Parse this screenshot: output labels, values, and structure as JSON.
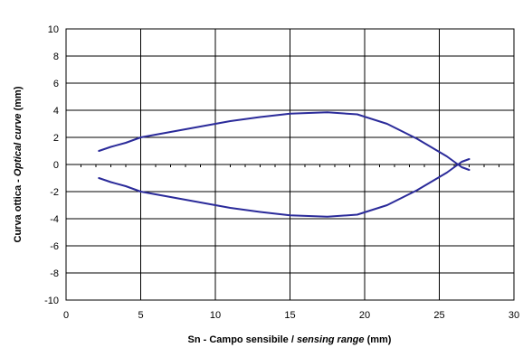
{
  "chart_data": {
    "type": "line",
    "xlabel_plain": "Sn - Campo sensibile / ",
    "xlabel_italic": "sensing range",
    "xlabel_suffix": " (mm)",
    "ylabel_plain": "Curva ottica - ",
    "ylabel_italic": "Optical curve",
    "ylabel_suffix": " (mm)",
    "xlim": [
      0,
      30
    ],
    "ylim": [
      -10,
      10
    ],
    "x_ticks": [
      0,
      5,
      10,
      15,
      20,
      25,
      30
    ],
    "y_ticks": [
      -10,
      -8,
      -6,
      -4,
      -2,
      0,
      2,
      4,
      6,
      8,
      10
    ],
    "x_tick_labels": [
      "0",
      "5",
      "10",
      "15",
      "20",
      "25",
      "30"
    ],
    "y_tick_labels": [
      "-10",
      "-8",
      "-6",
      "-4",
      "-2",
      "0",
      "2",
      "4",
      "6",
      "8",
      "10"
    ],
    "grid": true,
    "legend": "none",
    "series": [
      {
        "color": "#2b2b9a",
        "x": [
          2.2,
          3,
          4,
          5,
          7,
          9,
          11,
          13,
          15,
          17.5,
          19.5,
          21.5,
          23.5,
          25.5,
          26.5,
          27
        ],
        "y": [
          1.0,
          1.3,
          1.6,
          2.0,
          2.4,
          2.8,
          3.2,
          3.5,
          3.75,
          3.85,
          3.7,
          3.0,
          1.9,
          0.6,
          -0.2,
          -0.4
        ]
      },
      {
        "color": "#2b2b9a",
        "x": [
          2.2,
          3,
          4,
          5,
          7,
          9,
          11,
          13,
          15,
          17.5,
          19.5,
          21.5,
          23.5,
          25.5,
          26.5,
          27
        ],
        "y": [
          -1.0,
          -1.3,
          -1.6,
          -2.0,
          -2.4,
          -2.8,
          -3.2,
          -3.5,
          -3.75,
          -3.85,
          -3.7,
          -3.0,
          -1.9,
          -0.6,
          0.2,
          0.4
        ]
      }
    ]
  }
}
